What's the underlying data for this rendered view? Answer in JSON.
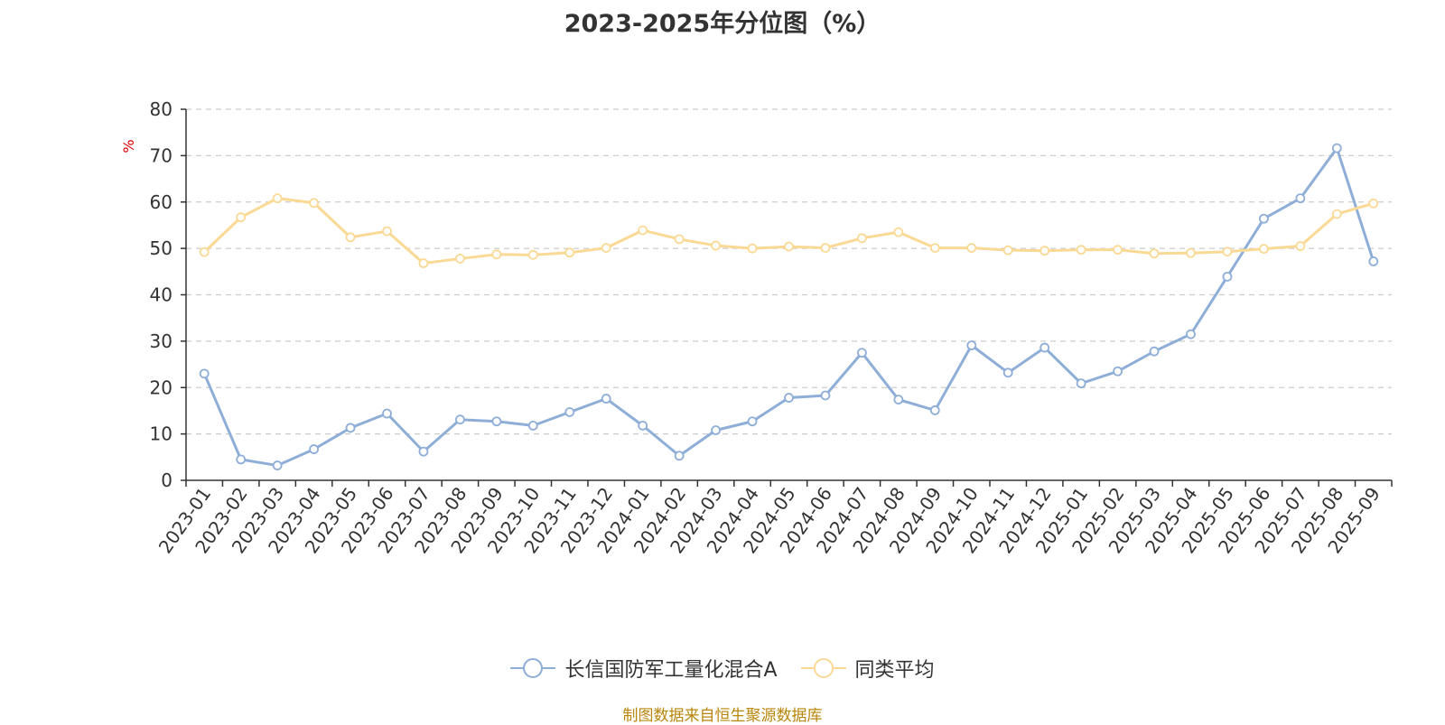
{
  "chart_data": {
    "type": "line",
    "title": "2023-2025年分位图（%）",
    "ylabel": "%",
    "ylim": [
      0,
      80
    ],
    "yticks": [
      0,
      10,
      20,
      30,
      40,
      50,
      60,
      70,
      80
    ],
    "grid": true,
    "legend_position": "bottom",
    "categories": [
      "2023-01",
      "2023-02",
      "2023-03",
      "2023-04",
      "2023-05",
      "2023-06",
      "2023-07",
      "2023-08",
      "2023-09",
      "2023-10",
      "2023-11",
      "2023-12",
      "2024-01",
      "2024-02",
      "2024-03",
      "2024-04",
      "2024-05",
      "2024-06",
      "2024-07",
      "2024-08",
      "2024-09",
      "2024-10",
      "2024-11",
      "2024-12",
      "2025-01",
      "2025-02",
      "2025-03",
      "2025-04",
      "2025-05",
      "2025-06",
      "2025-07",
      "2025-08",
      "2025-09"
    ],
    "series": [
      {
        "name": "长信国防军工量化混合A",
        "color": "#8eaed8",
        "values": [
          23.0,
          4.5,
          3.2,
          6.7,
          11.3,
          14.4,
          6.2,
          13.1,
          12.7,
          11.8,
          14.7,
          17.6,
          11.8,
          5.3,
          10.8,
          12.7,
          17.8,
          18.3,
          27.5,
          17.4,
          15.1,
          29.1,
          23.2,
          28.6,
          20.9,
          23.5,
          27.8,
          31.5,
          43.9,
          56.4,
          60.8,
          71.6,
          47.2
        ]
      },
      {
        "name": "同类平均",
        "color": "#fad995",
        "values": [
          49.2,
          56.7,
          60.8,
          59.8,
          52.4,
          53.7,
          46.8,
          47.8,
          48.7,
          48.6,
          49.1,
          50.1,
          53.9,
          52.0,
          50.6,
          50.0,
          50.4,
          50.1,
          52.2,
          53.5,
          50.1,
          50.1,
          49.6,
          49.5,
          49.7,
          49.7,
          48.9,
          49.0,
          49.3,
          49.9,
          50.5,
          57.4,
          59.7
        ]
      }
    ]
  },
  "source_text": "制图数据来自恒生聚源数据库"
}
